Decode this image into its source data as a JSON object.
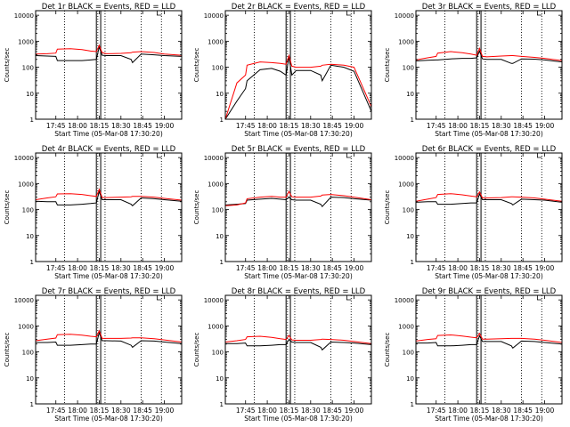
{
  "chart_data": {
    "type": "line",
    "layout": "3x3 grid",
    "shared": {
      "xlabel": "Start Time (05-Mar-08 17:30:20)",
      "ylabel": "Counts/sec",
      "x_ticks": [
        "17:45",
        "18:00",
        "18:15",
        "18:30",
        "18:45",
        "19:00"
      ],
      "x_range": [
        "17:31",
        "19:12"
      ],
      "y_scale": "log",
      "ylim": [
        1,
        15000
      ],
      "y_ticks": [
        "1",
        "10",
        "100",
        "1000",
        "10000"
      ],
      "dotted_verticals": [
        "17:51",
        "18:14",
        "18:19",
        "18:44",
        "18:58"
      ],
      "solid_verticals": [
        "18:13",
        "18:16"
      ],
      "series_colors": {
        "Events": "#000000",
        "LLD": "#ff0000"
      },
      "time_grid": [
        "17:31",
        "17:39",
        "17:45",
        "17:46",
        "17:55",
        "18:03",
        "18:09",
        "18:13",
        "18:15",
        "18:17",
        "18:20",
        "18:30",
        "18:37",
        "18:38",
        "18:44",
        "18:53",
        "19:00",
        "19:12"
      ]
    },
    "panels": [
      {
        "title": "Det 1r BLACK = Events, RED = LLD",
        "series": [
          {
            "name": "Events",
            "color": "#000000",
            "values": [
              280,
              270,
              260,
              180,
              180,
              180,
              190,
              200,
              600,
              290,
              280,
              280,
              200,
              150,
              320,
              300,
              280,
              260
            ]
          },
          {
            "name": "LLD",
            "color": "#ff0000",
            "values": [
              320,
              330,
              350,
              500,
              520,
              480,
              420,
              400,
              700,
              360,
              330,
              340,
              360,
              380,
              400,
              370,
              320,
              290
            ]
          }
        ]
      },
      {
        "title": "Det 2r BLACK = Events, RED = LLD",
        "series": [
          {
            "name": "Events",
            "color": "#000000",
            "values": [
              1,
              5,
              15,
              30,
              80,
              90,
              70,
              50,
              250,
              50,
              75,
              75,
              50,
              30,
              120,
              100,
              70,
              2
            ]
          },
          {
            "name": "LLD",
            "color": "#ff0000",
            "values": [
              1,
              25,
              50,
              120,
              160,
              150,
              140,
              130,
              280,
              110,
              100,
              100,
              110,
              120,
              130,
              120,
              100,
              3
            ]
          }
        ]
      },
      {
        "title": "Det 3r BLACK = Events, RED = LLD",
        "series": [
          {
            "name": "Events",
            "color": "#000000",
            "values": [
              175,
              185,
              190,
              190,
              210,
              220,
              220,
              230,
              420,
              210,
              200,
              200,
              140,
              140,
              210,
              205,
              190,
              160
            ]
          },
          {
            "name": "LLD",
            "color": "#ff0000",
            "values": [
              190,
              230,
              260,
              350,
              400,
              360,
              320,
              290,
              530,
              260,
              250,
              270,
              280,
              280,
              260,
              240,
              220,
              180
            ]
          }
        ]
      },
      {
        "title": "Det 4r BLACK = Events, RED = LLD",
        "series": [
          {
            "name": "Events",
            "color": "#000000",
            "values": [
              210,
              200,
              200,
              150,
              150,
              160,
              170,
              180,
              500,
              240,
              240,
              240,
              160,
              140,
              280,
              260,
              240,
              210
            ]
          },
          {
            "name": "LLD",
            "color": "#ff0000",
            "values": [
              240,
              280,
              310,
              400,
              410,
              380,
              340,
              320,
              600,
              290,
              290,
              300,
              310,
              320,
              320,
              300,
              270,
              230
            ]
          }
        ]
      },
      {
        "title": "Det 5r BLACK = Events, RED = LLD",
        "series": [
          {
            "name": "Events",
            "color": "#000000",
            "values": [
              150,
              160,
              170,
              230,
              250,
              270,
              250,
              240,
              300,
              240,
              230,
              230,
              160,
              130,
              300,
              290,
              260,
              230
            ]
          },
          {
            "name": "LLD",
            "color": "#ff0000",
            "values": [
              140,
              150,
              180,
              260,
              300,
              320,
              300,
              300,
              500,
              310,
              300,
              300,
              330,
              360,
              380,
              340,
              300,
              240
            ]
          }
        ]
      },
      {
        "title": "Det 6r BLACK = Events, RED = LLD",
        "series": [
          {
            "name": "Events",
            "color": "#000000",
            "values": [
              190,
              200,
              200,
              160,
              160,
              170,
              180,
              180,
              400,
              240,
              240,
              240,
              170,
              150,
              250,
              240,
              230,
              190
            ]
          },
          {
            "name": "LLD",
            "color": "#ff0000",
            "values": [
              210,
              250,
              290,
              380,
              410,
              370,
              330,
              310,
              480,
              280,
              280,
              290,
              310,
              310,
              300,
              280,
              250,
              210
            ]
          }
        ]
      },
      {
        "title": "Det 7r BLACK = Events, RED = LLD",
        "series": [
          {
            "name": "Events",
            "color": "#000000",
            "values": [
              230,
              230,
              240,
              180,
              180,
              190,
              200,
              200,
              550,
              270,
              270,
              260,
              180,
              150,
              270,
              260,
              240,
              210
            ]
          },
          {
            "name": "LLD",
            "color": "#ff0000",
            "values": [
              270,
              310,
              340,
              460,
              480,
              440,
              400,
              380,
              650,
              330,
              330,
              330,
              340,
              350,
              350,
              320,
              290,
              240
            ]
          }
        ]
      },
      {
        "title": "Det 8r BLACK = Events, RED = LLD",
        "series": [
          {
            "name": "Events",
            "color": "#000000",
            "values": [
              210,
              210,
              220,
              170,
              170,
              180,
              190,
              190,
              300,
              240,
              230,
              230,
              150,
              120,
              240,
              230,
              220,
              190
            ]
          },
          {
            "name": "LLD",
            "color": "#ff0000",
            "values": [
              240,
              270,
              300,
              380,
              400,
              360,
              320,
              300,
              430,
              290,
              280,
              280,
              300,
              310,
              300,
              280,
              250,
              210
            ]
          }
        ]
      },
      {
        "title": "Det 9r BLACK = Events, RED = LLD",
        "series": [
          {
            "name": "Events",
            "color": "#000000",
            "values": [
              220,
              220,
              230,
              170,
              170,
              180,
              190,
              190,
              420,
              250,
              250,
              250,
              170,
              140,
              260,
              250,
              230,
              200
            ]
          },
          {
            "name": "LLD",
            "color": "#ff0000",
            "values": [
              260,
              300,
              320,
              430,
              450,
              410,
              370,
              350,
              520,
              310,
              310,
              320,
              330,
              330,
              330,
              310,
              280,
              230
            ]
          }
        ]
      }
    ]
  }
}
